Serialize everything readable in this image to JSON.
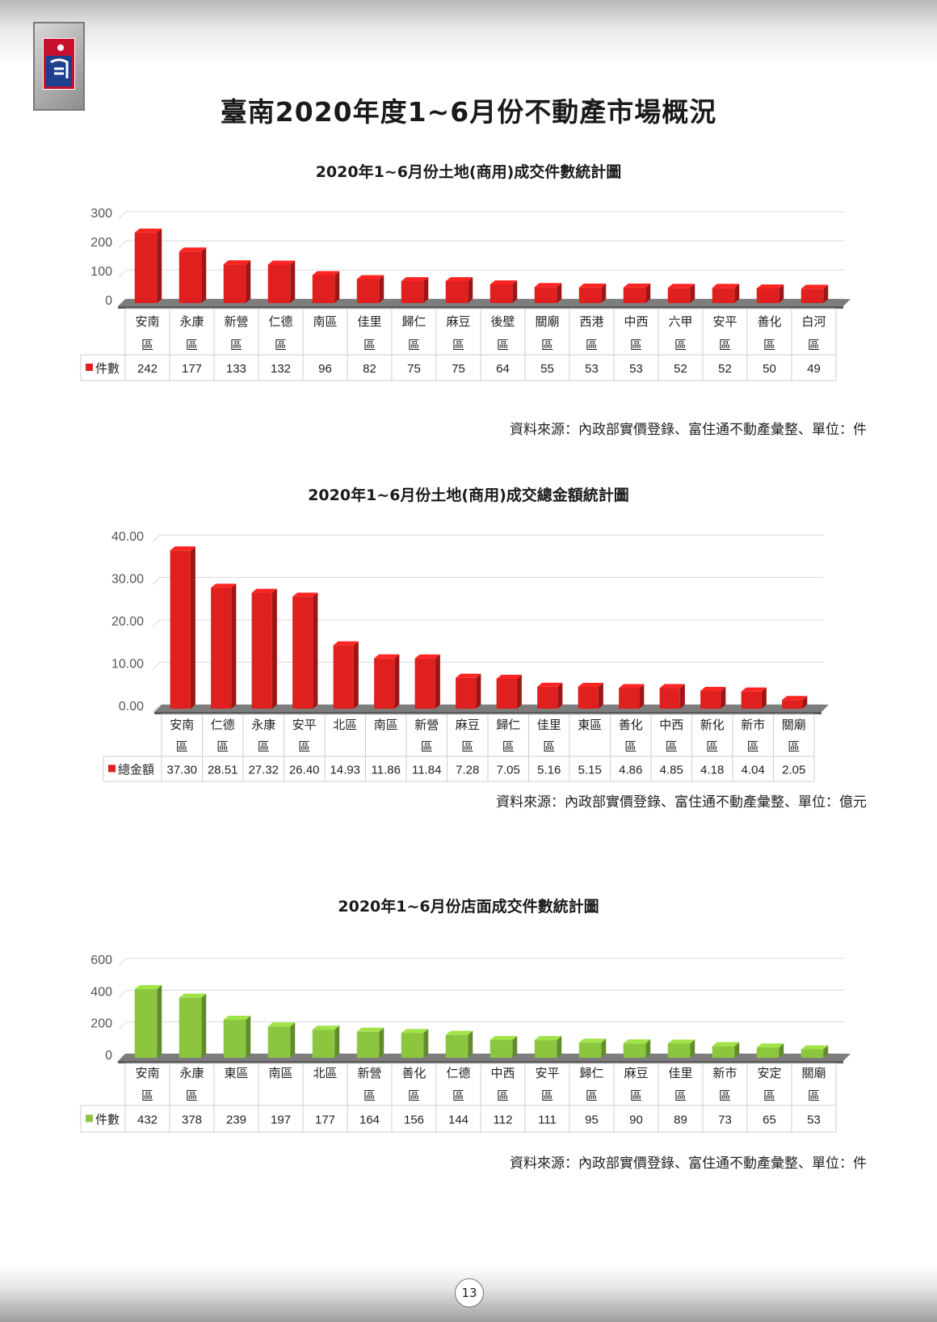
{
  "page": {
    "title": "臺南2020年度1~6月份不動產市場概況",
    "page_number": "13"
  },
  "chart_data": [
    {
      "type": "bar",
      "title": "2020年1~6月份土地(商用)成交件數統計圖",
      "source": "資料來源：內政部實價登錄、富住通不動產彙整、單位：件",
      "color": "#e0201e",
      "categories": [
        [
          "安南",
          "區"
        ],
        [
          "永康",
          "區"
        ],
        [
          "新營",
          "區"
        ],
        [
          "仁德",
          "區"
        ],
        [
          "南區",
          ""
        ],
        [
          "佳里",
          "區"
        ],
        [
          "歸仁",
          "區"
        ],
        [
          "麻豆",
          "區"
        ],
        [
          "後壁",
          "區"
        ],
        [
          "關廟",
          "區"
        ],
        [
          "西港",
          "區"
        ],
        [
          "中西",
          "區"
        ],
        [
          "六甲",
          "區"
        ],
        [
          "安平",
          "區"
        ],
        [
          "善化",
          "區"
        ],
        [
          "白河",
          "區"
        ]
      ],
      "series": [
        {
          "name": "件數",
          "values": [
            242,
            177,
            133,
            132,
            96,
            82,
            75,
            75,
            64,
            55,
            53,
            53,
            52,
            52,
            50,
            49
          ],
          "labels": [
            "242",
            "177",
            "133",
            "132",
            "96",
            "82",
            "75",
            "75",
            "64",
            "55",
            "53",
            "53",
            "52",
            "52",
            "50",
            "49"
          ]
        }
      ],
      "yticks": [
        "0",
        "100",
        "200",
        "300"
      ],
      "ylim": [
        0,
        300
      ]
    },
    {
      "type": "bar",
      "title": "2020年1~6月份土地(商用)成交總金額統計圖",
      "source": "資料來源：內政部實價登錄、富住通不動產彙整、單位：億元",
      "color": "#e0201e",
      "categories": [
        [
          "安南",
          "區"
        ],
        [
          "仁德",
          "區"
        ],
        [
          "永康",
          "區"
        ],
        [
          "安平",
          "區"
        ],
        [
          "北區",
          ""
        ],
        [
          "南區",
          ""
        ],
        [
          "新營",
          "區"
        ],
        [
          "麻豆",
          "區"
        ],
        [
          "歸仁",
          "區"
        ],
        [
          "佳里",
          "區"
        ],
        [
          "東區",
          ""
        ],
        [
          "善化",
          "區"
        ],
        [
          "中西",
          "區"
        ],
        [
          "新化",
          "區"
        ],
        [
          "新市",
          "區"
        ],
        [
          "關廟",
          "區"
        ]
      ],
      "series": [
        {
          "name": "總金額",
          "values": [
            37.3,
            28.51,
            27.32,
            26.4,
            14.93,
            11.86,
            11.84,
            7.28,
            7.05,
            5.16,
            5.15,
            4.86,
            4.85,
            4.18,
            4.04,
            2.05
          ],
          "labels": [
            "37.30",
            "28.51",
            "27.32",
            "26.40",
            "14.93",
            "11.86",
            "11.84",
            "7.28",
            "7.05",
            "5.16",
            "5.15",
            "4.86",
            "4.85",
            "4.18",
            "4.04",
            "2.05"
          ]
        }
      ],
      "yticks": [
        "0.00",
        "10.00",
        "20.00",
        "30.00",
        "40.00"
      ],
      "ylim": [
        0,
        40
      ]
    },
    {
      "type": "bar",
      "title": "2020年1~6月份店面成交件數統計圖",
      "source": "資料來源：內政部實價登錄、富住通不動產彙整、單位：件",
      "color": "#8cc63f",
      "categories": [
        [
          "安南",
          "區"
        ],
        [
          "永康",
          "區"
        ],
        [
          "東區",
          ""
        ],
        [
          "南區",
          ""
        ],
        [
          "北區",
          ""
        ],
        [
          "新營",
          "區"
        ],
        [
          "善化",
          "區"
        ],
        [
          "仁德",
          "區"
        ],
        [
          "中西",
          "區"
        ],
        [
          "安平",
          "區"
        ],
        [
          "歸仁",
          "區"
        ],
        [
          "麻豆",
          "區"
        ],
        [
          "佳里",
          "區"
        ],
        [
          "新市",
          "區"
        ],
        [
          "安定",
          "區"
        ],
        [
          "關廟",
          "區"
        ]
      ],
      "series": [
        {
          "name": "件數",
          "values": [
            432,
            378,
            239,
            197,
            177,
            164,
            156,
            144,
            112,
            111,
            95,
            90,
            89,
            73,
            65,
            53
          ],
          "labels": [
            "432",
            "378",
            "239",
            "197",
            "177",
            "164",
            "156",
            "144",
            "112",
            "111",
            "95",
            "90",
            "89",
            "73",
            "65",
            "53"
          ]
        }
      ],
      "yticks": [
        "0",
        "200",
        "400",
        "600"
      ],
      "ylim": [
        0,
        600
      ]
    }
  ]
}
